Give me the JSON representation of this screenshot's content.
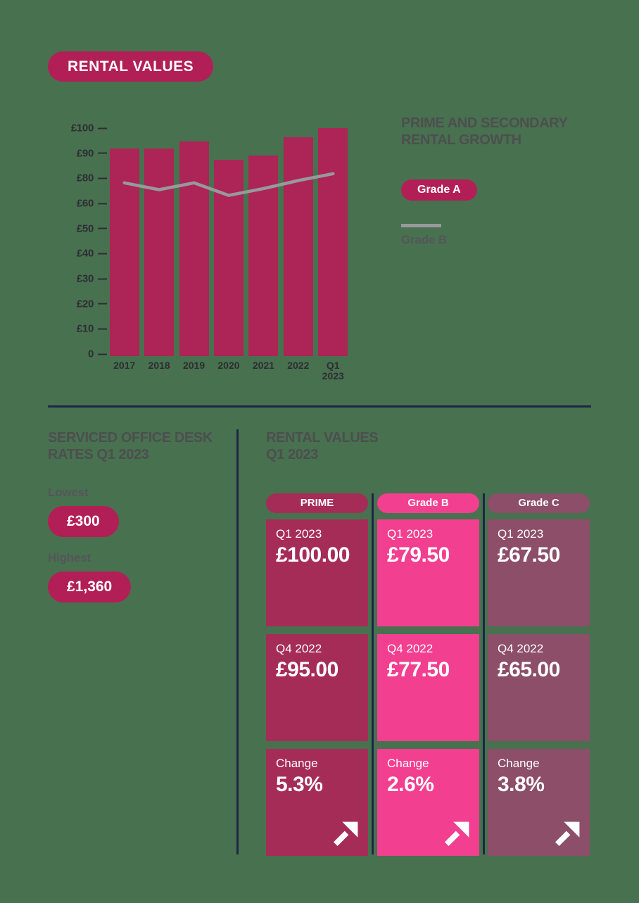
{
  "badge": {
    "label": "RENTAL VALUES"
  },
  "chart_data": {
    "type": "bar",
    "title": "PRIME AND SECONDARY RENTAL GROWTH",
    "categories": [
      "2017",
      "2018",
      "2019",
      "2020",
      "2021",
      "2022",
      "Q1\n2023"
    ],
    "series": [
      {
        "name": "Grade A",
        "render": "bar",
        "color": "#AD2456",
        "values": [
          91,
          91,
          94,
          86,
          88,
          96,
          100
        ]
      },
      {
        "name": "Grade B",
        "render": "line",
        "color": "#97999C",
        "values": [
          76,
          73,
          76,
          70.5,
          73.5,
          77,
          80
        ]
      }
    ],
    "y_tick_labels": [
      "£100",
      "£90",
      "£80",
      "£60",
      "£50",
      "£40",
      "£30",
      "£20",
      "£10",
      "0"
    ],
    "ylim": [
      0,
      100
    ],
    "ylabel": "",
    "xlabel": "",
    "grid": false,
    "legend_position": "right"
  },
  "chart_legend": {
    "title_line1": "PRIME AND SECONDARY",
    "title_line2": "RENTAL GROWTH",
    "grade_a": "Grade A",
    "grade_b": "Grade B"
  },
  "desk_rates": {
    "title_line1": "SERVICED OFFICE DESK",
    "title_line2": "RATES Q1 2023",
    "lowest_label": "Lowest",
    "lowest_value": "£300",
    "highest_label": "Highest",
    "highest_value": "£1,360"
  },
  "rental_values": {
    "title_line1": "RENTAL VALUES",
    "title_line2": "Q1 2023",
    "columns": [
      {
        "header": "PRIME",
        "color": "#A62C58",
        "cards": [
          {
            "label": "Q1 2023",
            "value": "£100.00"
          },
          {
            "label": "Q4 2022",
            "value": "£95.00"
          },
          {
            "label": "Change",
            "value": "5.3%",
            "arrow": "up-right"
          }
        ]
      },
      {
        "header": "Grade B",
        "color": "#F23F90",
        "cards": [
          {
            "label": "Q1 2023",
            "value": "£79.50"
          },
          {
            "label": "Q4 2022",
            "value": "£77.50"
          },
          {
            "label": "Change",
            "value": "2.6%",
            "arrow": "up-right"
          }
        ]
      },
      {
        "header": "Grade C",
        "color": "#8C4E68",
        "cards": [
          {
            "label": "Q1 2023",
            "value": "£67.50"
          },
          {
            "label": "Q4 2022",
            "value": "£65.00"
          },
          {
            "label": "Change",
            "value": "3.8%",
            "arrow": "up-right"
          }
        ]
      }
    ]
  },
  "colors": {
    "background": "#48714F",
    "crimson": "#AD2456",
    "bright_pink": "#F23F90",
    "mauve": "#8C4E68",
    "navy": "#1D2746",
    "heading_gray": "#4D4E50",
    "label_gray": "#55565A",
    "trend_line_gray": "#97999C"
  }
}
